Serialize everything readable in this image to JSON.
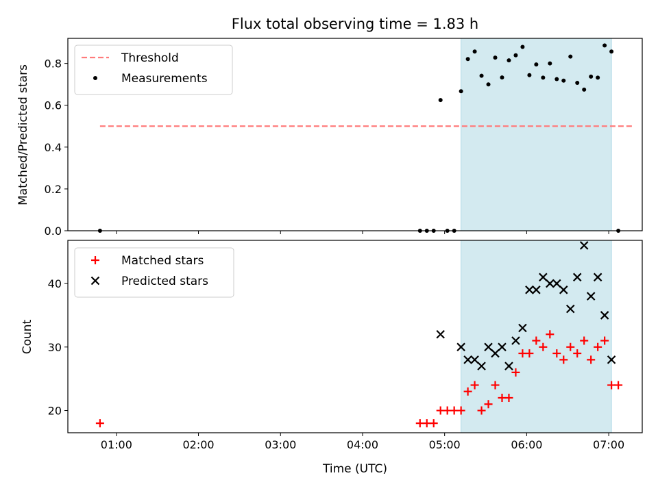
{
  "chart_data": [
    {
      "type": "scatter",
      "title": "Flux total observing time = 1.83 h",
      "xlabel": "",
      "ylabel": "Matched/Predicted stars",
      "ylim": [
        0,
        0.92
      ],
      "yticks": [
        0.0,
        0.2,
        0.4,
        0.6,
        0.8
      ],
      "ytick_labels": [
        "0.0",
        "0.2",
        "0.4",
        "0.6",
        "0.8"
      ],
      "xticks_minutes": [
        60,
        120,
        180,
        240,
        300,
        360,
        420
      ],
      "shaded_span_minutes": [
        312,
        422
      ],
      "shade_color": "#d3eaf0",
      "legend_position": "upper left",
      "threshold": {
        "name": "Threshold",
        "value": 0.5,
        "x_range_minutes": [
          48,
          437
        ],
        "color": "#ff7b7b",
        "style": "dashed"
      },
      "series": [
        {
          "name": "Measurements",
          "marker": "dot",
          "color": "#000000",
          "x_minutes": [
            48,
            282,
            287,
            292,
            297,
            302,
            307,
            312,
            317,
            322,
            327,
            332,
            337,
            342,
            347,
            352,
            357,
            362,
            367,
            372,
            377,
            382,
            387,
            392,
            397,
            402,
            407,
            412,
            417,
            422,
            427
          ],
          "y": [
            0.0,
            0.0,
            0.0,
            0.0,
            0.625,
            0.0,
            0.0,
            0.667,
            0.821,
            0.857,
            0.741,
            0.7,
            0.828,
            0.733,
            0.815,
            0.839,
            0.879,
            0.744,
            0.795,
            0.732,
            0.8,
            0.725,
            0.718,
            0.833,
            0.707,
            0.675,
            0.737,
            0.732,
            0.886,
            0.857,
            0.0
          ]
        }
      ]
    },
    {
      "type": "scatter",
      "title": "",
      "xlabel": "Time (UTC)",
      "ylabel": "Count",
      "ylim": [
        16.5,
        46.8
      ],
      "yticks": [
        20,
        30,
        40
      ],
      "ytick_labels": [
        "20",
        "30",
        "40"
      ],
      "xticks_minutes": [
        60,
        120,
        180,
        240,
        300,
        360,
        420
      ],
      "xtick_labels": [
        "01:00",
        "02:00",
        "03:00",
        "04:00",
        "05:00",
        "06:00",
        "07:00"
      ],
      "shaded_span_minutes": [
        312,
        422
      ],
      "shade_color": "#d3eaf0",
      "legend_position": "upper left",
      "series": [
        {
          "name": "Matched stars",
          "marker": "plus",
          "color": "#ff0000",
          "x_minutes": [
            48,
            282,
            287,
            292,
            297,
            302,
            307,
            312,
            317,
            322,
            327,
            332,
            337,
            342,
            347,
            352,
            357,
            362,
            367,
            372,
            377,
            382,
            387,
            392,
            397,
            402,
            407,
            412,
            417,
            422,
            427
          ],
          "y": [
            18,
            18,
            18,
            18,
            20,
            20,
            20,
            20,
            23,
            24,
            20,
            21,
            24,
            22,
            22,
            26,
            29,
            29,
            31,
            30,
            32,
            29,
            28,
            30,
            29,
            31,
            28,
            30,
            31,
            24,
            24
          ]
        },
        {
          "name": "Predicted stars",
          "marker": "x",
          "color": "#000000",
          "x_minutes": [
            297,
            312,
            317,
            322,
            327,
            332,
            337,
            342,
            347,
            352,
            357,
            362,
            367,
            372,
            377,
            382,
            387,
            392,
            397,
            402,
            407,
            412,
            417,
            422
          ],
          "y": [
            32,
            30,
            28,
            28,
            27,
            30,
            29,
            30,
            27,
            31,
            33,
            39,
            39,
            41,
            40,
            40,
            39,
            36,
            41,
            46,
            38,
            41,
            35,
            28
          ]
        }
      ]
    }
  ]
}
